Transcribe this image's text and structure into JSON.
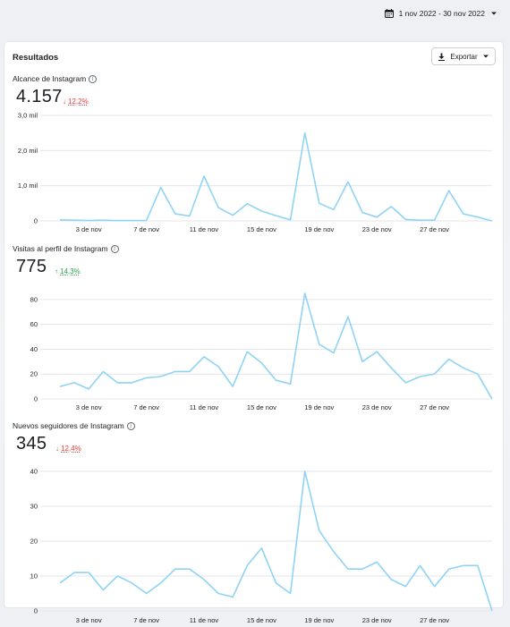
{
  "header": {
    "date_range": "1 nov 2022 - 30 nov 2022"
  },
  "card": {
    "title": "Resultados",
    "export_label": "Exportar"
  },
  "colors": {
    "line": "#8fd3f5",
    "down": "#e0413e",
    "up": "#31a24c",
    "grid": "#e4e6eb"
  },
  "chart_data": [
    {
      "type": "line",
      "title": "Alcance de Instagram",
      "value": "4.157",
      "change": "12,2%",
      "direction": "down",
      "ylim": [
        0,
        3000
      ],
      "yticks": [
        0,
        1000,
        2000,
        3000
      ],
      "ytick_labels": [
        "0",
        "1,0 mil",
        "2,0 mil",
        "3,0 mil"
      ],
      "x_tick_labels": [
        "3 de nov",
        "7 de nov",
        "11 de nov",
        "15 de nov",
        "19 de nov",
        "23 de nov",
        "27 de nov"
      ],
      "x_tick_days": [
        3,
        7,
        11,
        15,
        19,
        23,
        27
      ],
      "x": [
        1,
        2,
        3,
        4,
        5,
        6,
        7,
        8,
        9,
        10,
        11,
        12,
        13,
        14,
        15,
        16,
        17,
        18,
        19,
        20,
        21,
        22,
        23,
        24,
        25,
        26,
        27,
        28,
        29,
        30,
        31
      ],
      "values": [
        30,
        20,
        10,
        20,
        10,
        10,
        10,
        950,
        200,
        140,
        1270,
        380,
        160,
        490,
        280,
        150,
        30,
        2500,
        500,
        320,
        1110,
        240,
        110,
        410,
        40,
        20,
        20,
        860,
        200,
        110,
        0
      ]
    },
    {
      "type": "line",
      "title": "Visitas al perfil de Instagram",
      "value": "775",
      "change": "14,3%",
      "direction": "up",
      "ylim": [
        0,
        90
      ],
      "yticks": [
        0,
        20,
        40,
        60,
        80
      ],
      "ytick_labels": [
        "0",
        "20",
        "40",
        "60",
        "80"
      ],
      "x_tick_labels": [
        "3 de nov",
        "7 de nov",
        "11 de nov",
        "15 de nov",
        "19 de nov",
        "23 de nov",
        "27 de nov"
      ],
      "x_tick_days": [
        3,
        7,
        11,
        15,
        19,
        23,
        27
      ],
      "x": [
        1,
        2,
        3,
        4,
        5,
        6,
        7,
        8,
        9,
        10,
        11,
        12,
        13,
        14,
        15,
        16,
        17,
        18,
        19,
        20,
        21,
        22,
        23,
        24,
        25,
        26,
        27,
        28,
        29,
        30,
        31
      ],
      "values": [
        10,
        13,
        8,
        22,
        13,
        13,
        17,
        18,
        22,
        22,
        34,
        26,
        10,
        38,
        29,
        15,
        12,
        85,
        44,
        37,
        66,
        30,
        38,
        25,
        13,
        18,
        20,
        32,
        25,
        20,
        0
      ]
    },
    {
      "type": "line",
      "title": "Nuevos seguidores de Instagram",
      "value": "345",
      "change": "12,4%",
      "direction": "down",
      "ylim": [
        0,
        40
      ],
      "yticks": [
        0,
        10,
        20,
        30,
        40
      ],
      "ytick_labels": [
        "0",
        "10",
        "20",
        "30",
        "40"
      ],
      "x_tick_labels": [
        "3 de nov",
        "7 de nov",
        "11 de nov",
        "15 de nov",
        "19 de nov",
        "23 de nov",
        "27 de nov"
      ],
      "x_tick_days": [
        3,
        7,
        11,
        15,
        19,
        23,
        27
      ],
      "x": [
        1,
        2,
        3,
        4,
        5,
        6,
        7,
        8,
        9,
        10,
        11,
        12,
        13,
        14,
        15,
        16,
        17,
        18,
        19,
        20,
        21,
        22,
        23,
        24,
        25,
        26,
        27,
        28,
        29,
        30,
        31
      ],
      "values": [
        8,
        11,
        11,
        6,
        10,
        8,
        5,
        8,
        12,
        12,
        9,
        5,
        4,
        13,
        18,
        8,
        5,
        40,
        23,
        17,
        12,
        12,
        14,
        9,
        7,
        13,
        7,
        12,
        13,
        13,
        0
      ]
    }
  ]
}
